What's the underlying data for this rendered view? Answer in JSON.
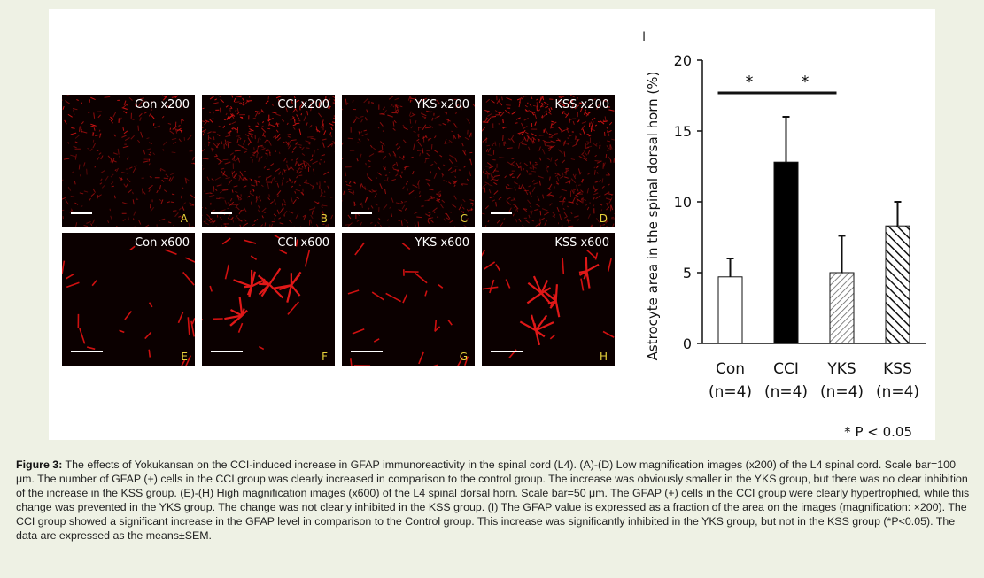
{
  "panels": [
    {
      "id": "A",
      "label": "Con x200",
      "letter": "A",
      "density": "low",
      "bar": "long"
    },
    {
      "id": "B",
      "label": "CCI x200",
      "letter": "B",
      "density": "high",
      "bar": "long"
    },
    {
      "id": "C",
      "label": "YKS x200",
      "letter": "C",
      "density": "medium",
      "bar": "long"
    },
    {
      "id": "D",
      "label": "KSS x200",
      "letter": "D",
      "density": "high",
      "bar": "long"
    },
    {
      "id": "E",
      "label": "Con x600",
      "letter": "E",
      "density": "sparse",
      "bar": "long"
    },
    {
      "id": "F",
      "label": "CCI x600",
      "letter": "F",
      "density": "astro",
      "bar": "long"
    },
    {
      "id": "G",
      "label": "YKS x600",
      "letter": "G",
      "density": "sparse",
      "bar": "long"
    },
    {
      "id": "H",
      "label": "KSS x600",
      "letter": "H",
      "density": "astro",
      "bar": "long"
    }
  ],
  "chart_data": {
    "type": "bar",
    "panel_letter": "I",
    "ylabel": "Astrocyte area in the spinal dorsal horn  (%)",
    "ylim": [
      0,
      20
    ],
    "yticks": [
      0,
      5,
      10,
      15,
      20
    ],
    "categories": [
      "Con",
      "CCI",
      "YKS",
      "KSS"
    ],
    "sample_sizes": [
      "(n=4)",
      "(n=4)",
      "(n=4)",
      "(n=4)"
    ],
    "values": [
      4.7,
      12.8,
      5.0,
      8.3
    ],
    "errors": [
      1.3,
      3.2,
      2.6,
      1.7
    ],
    "fills": [
      "white",
      "black",
      "hatch-light",
      "hatch-dark"
    ],
    "significance": [
      {
        "from": "Con",
        "to": "CCI",
        "label": "*"
      },
      {
        "from": "CCI",
        "to": "YKS",
        "label": "*"
      }
    ],
    "footnote": "* P < 0.05"
  },
  "caption": {
    "label": "Figure 3:",
    "text": " The effects of Yokukansan on the CCI-induced increase in GFAP immunoreactivity in the spinal cord (L4). (A)-(D) Low magnification images (x200) of the L4 spinal cord. Scale bar=100 μm. The number of GFAP (+) cells in the CCI group was clearly increased in comparison to the control group. The increase was obviously smaller in the YKS group, but there was no clear inhibition of the increase in the KSS group. (E)-(H) High magnification images (x600) of the L4 spinal dorsal horn. Scale bar=50 μm.  The GFAP (+) cells in the CCI group were clearly hypertrophied, while this change was prevented in the YKS group. The change was not clearly inhibited in the KSS group. (I) The GFAP value is expressed as a fraction of the area on the images (magnification: ×200). The CCI group showed a significant increase in the GFAP level in comparison to the Control group. This increase was significantly inhibited in the YKS group, but not in the KSS group (*P<0.05). The data are expressed as the means±SEM."
  }
}
